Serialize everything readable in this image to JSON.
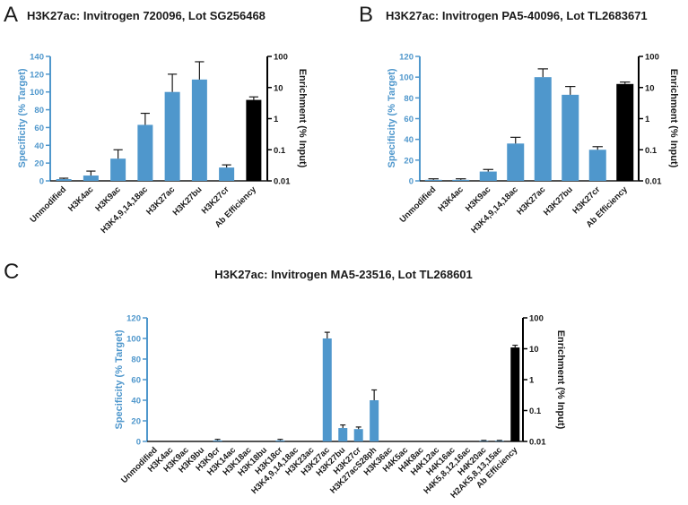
{
  "colors": {
    "bar": "#4f97cc",
    "accent_bar": "#000000",
    "left_axis": "#4f97cc",
    "right_axis": "#000000",
    "error": "#1a1a1a"
  },
  "panels": [
    {
      "letter": "A",
      "title": "H3K27ac: Invitrogen 720096, Lot SG256468"
    },
    {
      "letter": "B",
      "title": "H3K27ac: Invitrogen PA5-40096, Lot TL2683671"
    },
    {
      "letter": "C",
      "title": "H3K27ac: Invitrogen MA5-23516, Lot TL268601"
    }
  ],
  "chart_data": [
    {
      "type": "bar",
      "title": "H3K27ac: Invitrogen 720096, Lot SG256468",
      "ylabel": "Specificity (% Target)",
      "y2label": "Enrichment (% Input)",
      "ylim": [
        0,
        140
      ],
      "yticks": [
        0,
        20,
        40,
        60,
        80,
        100,
        120,
        140
      ],
      "y2lim": [
        0.01,
        100
      ],
      "y2scale": "log",
      "y2ticks": [
        "0.01",
        "0.1",
        "1",
        "10",
        "100"
      ],
      "categories": [
        "Unmodified",
        "H3K4ac",
        "H3K9ac",
        "H3K4,9,14,18ac",
        "H3K27ac",
        "H3K27bu",
        "H3K27cr"
      ],
      "series": [
        {
          "values": [
            2,
            6,
            25,
            63,
            100,
            114,
            15
          ],
          "errors": [
            1,
            5,
            10,
            13,
            20,
            20,
            3
          ]
        }
      ],
      "ab_efficiency": {
        "label": "Ab Efficiency",
        "value": 4,
        "error_value": 5,
        "axis": "right"
      }
    },
    {
      "type": "bar",
      "title": "H3K27ac: Invitrogen PA5-40096, Lot TL2683671",
      "ylabel": "Specificity (% Target)",
      "y2label": "Enrichment (% Input)",
      "ylim": [
        0,
        120
      ],
      "yticks": [
        0,
        20,
        40,
        60,
        80,
        100,
        120
      ],
      "y2lim": [
        0.01,
        100
      ],
      "y2scale": "log",
      "y2ticks": [
        "0.01",
        "0.1",
        "1",
        "10",
        "100"
      ],
      "categories": [
        "Unmodified",
        "H3K4ac",
        "H3K9ac",
        "H3K4,9,14,18ac",
        "H3K27ac",
        "H3K27bu",
        "H3K27cr"
      ],
      "series": [
        {
          "values": [
            1,
            1,
            9,
            36,
            100,
            83,
            30
          ],
          "errors": [
            1,
            1,
            2,
            6,
            8,
            8,
            3
          ]
        }
      ],
      "ab_efficiency": {
        "label": "Ab Efficiency",
        "value": 13,
        "error_value": 15,
        "axis": "right"
      }
    },
    {
      "type": "bar",
      "title": "H3K27ac: Invitrogen MA5-23516, Lot TL268601",
      "ylabel": "Specificity (% Target)",
      "y2label": "Enrichment (% Input)",
      "ylim": [
        0,
        120
      ],
      "yticks": [
        0,
        20,
        40,
        60,
        80,
        100,
        120
      ],
      "y2lim": [
        0.01,
        100
      ],
      "y2scale": "log",
      "y2ticks": [
        "0.01",
        "0.1",
        "1",
        "10",
        "100"
      ],
      "categories": [
        "Unmodified",
        "H3K4ac",
        "H3K9ac",
        "H3K9bu",
        "H3K9cr",
        "H3K14ac",
        "H3K18ac",
        "H3K18bu",
        "H3K18cr",
        "H3K4,9,14,18ac",
        "H3K23ac",
        "H3K27ac",
        "H3K27bu",
        "H3K27cr",
        "H3K27acS28ph",
        "H3K36ac",
        "H4K5ac",
        "H4K8ac",
        "H4K12ac",
        "H4K16ac",
        "H4K5,8,12,16ac",
        "H4K20ac",
        "H2AK5,8,13,15ac"
      ],
      "series": [
        {
          "values": [
            0,
            0,
            0,
            0,
            1,
            0,
            0,
            0,
            1,
            0,
            0,
            100,
            13,
            12,
            40,
            0,
            0,
            0,
            0,
            0,
            0,
            0.5,
            0.5
          ],
          "errors": [
            0,
            0,
            0,
            0,
            1,
            0,
            0,
            0,
            1,
            0,
            0,
            6,
            3,
            2,
            10,
            0,
            0,
            0,
            0,
            0,
            0,
            0.5,
            0.5
          ]
        }
      ],
      "ab_efficiency": {
        "label": "Ab Efficiency",
        "value": 11,
        "error_value": 13,
        "axis": "right"
      }
    }
  ]
}
